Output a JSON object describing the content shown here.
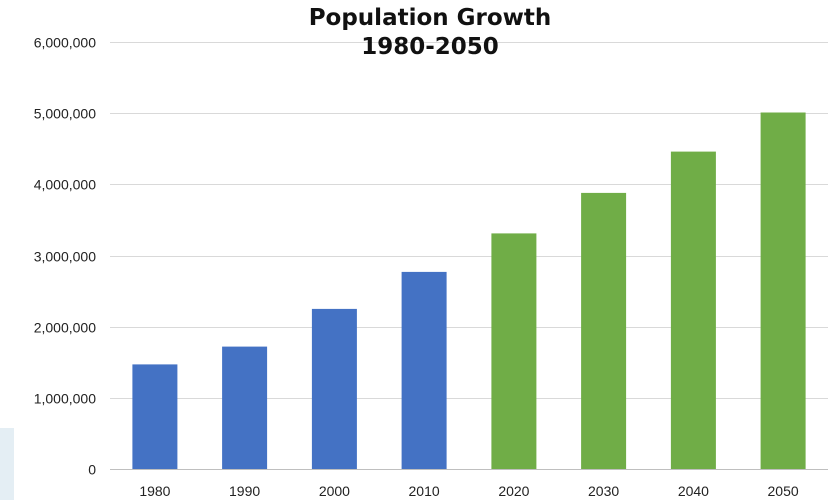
{
  "chart_data": {
    "type": "bar",
    "title": "Population Growth",
    "subtitle": "1980-2050",
    "xlabel": "",
    "ylabel": "",
    "categories": [
      "1980",
      "1990",
      "2000",
      "2010",
      "2020",
      "2030",
      "2040",
      "2050"
    ],
    "values": [
      1470000,
      1720000,
      2250000,
      2770000,
      3310000,
      3880000,
      4460000,
      5010000
    ],
    "bar_colors": [
      "#4472c4",
      "#4472c4",
      "#4472c4",
      "#4472c4",
      "#70ad47",
      "#70ad47",
      "#70ad47",
      "#70ad47"
    ],
    "ylim": [
      0,
      6000000
    ],
    "yticks": [
      0,
      1000000,
      2000000,
      3000000,
      4000000,
      5000000,
      6000000
    ],
    "ytick_labels": [
      "0",
      "1,000,000",
      "2,000,000",
      "3,000,000",
      "4,000,000",
      "5,000,000",
      "6,000,000"
    ],
    "grid": true,
    "legend": "none",
    "grid_color": "#d9d9d9",
    "axis_color": "#bfbfbf",
    "label_color": "#222222"
  }
}
